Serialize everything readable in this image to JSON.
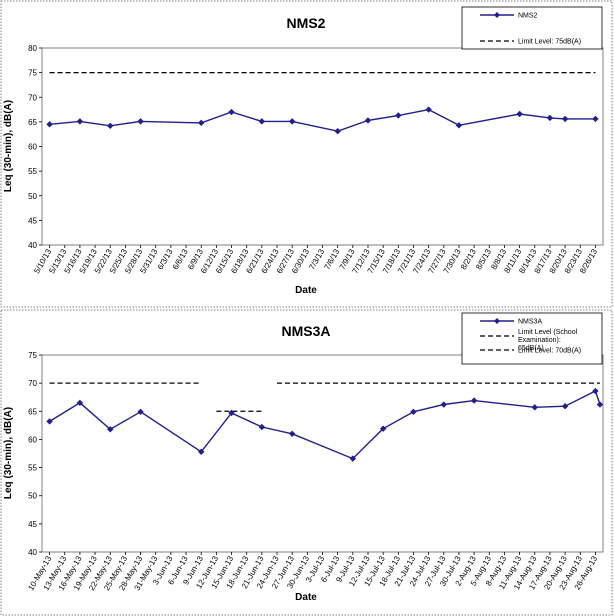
{
  "chart_data": [
    {
      "type": "line",
      "title": "NMS2",
      "xlabel": "Date",
      "ylabel": "Leq (30-min), dB(A)",
      "ylim": [
        40,
        80
      ],
      "yticks": [
        40,
        45,
        50,
        55,
        60,
        65,
        70,
        75,
        80
      ],
      "grid": false,
      "legend_position": "top-right",
      "categories": [
        "5/10/13",
        "5/13/13",
        "5/16/13",
        "5/19/13",
        "5/22/13",
        "5/25/13",
        "5/28/13",
        "5/31/13",
        "6/3/13",
        "6/6/13",
        "6/9/13",
        "6/12/13",
        "6/15/13",
        "6/18/13",
        "6/21/13",
        "6/24/13",
        "6/27/13",
        "6/30/13",
        "7/3/13",
        "7/6/13",
        "7/9/13",
        "7/12/13",
        "7/15/13",
        "7/18/13",
        "7/21/13",
        "7/24/13",
        "7/27/13",
        "7/30/13",
        "8/2/13",
        "8/5/13",
        "8/8/13",
        "8/11/13",
        "8/14/13",
        "8/17/13",
        "8/20/13",
        "8/23/13",
        "8/26/13"
      ],
      "series": [
        {
          "name": "NMS2",
          "color": "#1f1f8f",
          "points": [
            {
              "x": "5/10/13",
              "y": 64.5
            },
            {
              "x": "5/16/13",
              "y": 65.1
            },
            {
              "x": "5/22/13",
              "y": 64.2
            },
            {
              "x": "5/28/13",
              "y": 65.1
            },
            {
              "x": "6/9/13",
              "y": 64.8
            },
            {
              "x": "6/15/13",
              "y": 67.0
            },
            {
              "x": "6/21/13",
              "y": 65.1
            },
            {
              "x": "6/27/13",
              "y": 65.1
            },
            {
              "x": "7/6/13",
              "y": 63.1
            },
            {
              "x": "7/12/13",
              "y": 65.3
            },
            {
              "x": "7/18/13",
              "y": 66.3
            },
            {
              "x": "7/24/13",
              "y": 67.5
            },
            {
              "x": "7/30/13",
              "y": 64.3
            },
            {
              "x": "8/11/13",
              "y": 66.6
            },
            {
              "x": "8/17/13",
              "y": 65.8
            },
            {
              "x": "8/20/13",
              "y": 65.6
            },
            {
              "x": "8/26/13",
              "y": 65.6
            }
          ]
        }
      ],
      "limits": [
        {
          "name": "Limit Level: 75dB(A)",
          "y": 75,
          "segments": [
            [
              "5/10/13",
              "8/26/13"
            ]
          ]
        }
      ]
    },
    {
      "type": "line",
      "title": "NMS3A",
      "xlabel": "Date",
      "ylabel": "Leq (30-min), dB(A)",
      "ylim": [
        40,
        75
      ],
      "yticks": [
        40,
        45,
        50,
        55,
        60,
        65,
        70,
        75
      ],
      "grid": false,
      "legend_position": "top-right",
      "categories": [
        "10-May-13",
        "13-May-13",
        "16-May-13",
        "19-May-13",
        "22-May-13",
        "25-May-13",
        "28-May-13",
        "31-May-13",
        "3-Jun-13",
        "6-Jun-13",
        "9-Jun-13",
        "12-Jun-13",
        "15-Jun-13",
        "18-Jun-13",
        "21-Jun-13",
        "24-Jun-13",
        "27-Jun-13",
        "30-Jun-13",
        "3-Jul-13",
        "6-Jul-13",
        "9-Jul-13",
        "12-Jul-13",
        "15-Jul-13",
        "18-Jul-13",
        "21-Jul-13",
        "24-Jul-13",
        "27-Jul-13",
        "30-Jul-13",
        "2-Aug-13",
        "5-Aug-13",
        "8-Aug-13",
        "11-Aug-13",
        "14-Aug-13",
        "17-Aug-13",
        "20-Aug-13",
        "23-Aug-13",
        "26-Aug-13"
      ],
      "series": [
        {
          "name": "NMS3A",
          "color": "#1f1f8f",
          "points": [
            {
              "x": "10-May-13",
              "y": 63.2
            },
            {
              "x": "16-May-13",
              "y": 66.5
            },
            {
              "x": "22-May-13",
              "y": 61.8
            },
            {
              "x": "28-May-13",
              "y": 64.9
            },
            {
              "x": "9-Jun-13",
              "y": 57.8
            },
            {
              "x": "15-Jun-13",
              "y": 64.7
            },
            {
              "x": "21-Jun-13",
              "y": 62.2
            },
            {
              "x": "27-Jun-13",
              "y": 61.0
            },
            {
              "x": "9-Jul-13",
              "y": 56.6
            },
            {
              "x": "15-Jul-13",
              "y": 61.9
            },
            {
              "x": "21-Jul-13",
              "y": 64.9
            },
            {
              "x": "27-Jul-13",
              "y": 66.2
            },
            {
              "x": "2-Aug-13",
              "y": 66.9
            },
            {
              "x": "14-Aug-13",
              "y": 65.7
            },
            {
              "x": "20-Aug-13",
              "y": 65.9
            },
            {
              "x": "26-Aug-13",
              "y": 68.6
            },
            {
              "x": "29-Aug-13",
              "y": 66.2
            }
          ]
        }
      ],
      "limits": [
        {
          "name": "Limit Level (School Examination): 65dB(A)",
          "y": 65,
          "segments": [
            [
              "12-Jun-13",
              "21-Jun-13"
            ]
          ]
        },
        {
          "name": "Limit Level: 70dB(A)",
          "y": 70,
          "segments": [
            [
              "10-May-13",
              "9-Jun-13"
            ],
            [
              "24-Jun-13",
              "29-Aug-13"
            ]
          ]
        }
      ]
    }
  ]
}
